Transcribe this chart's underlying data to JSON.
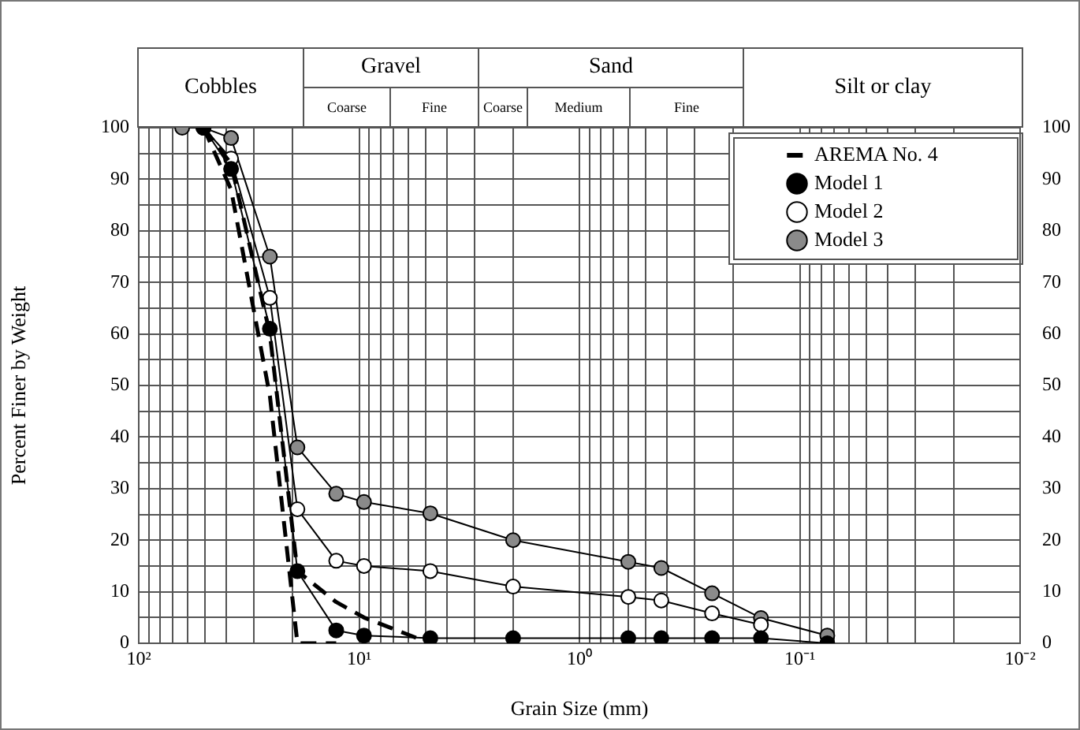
{
  "chart_data": {
    "type": "line",
    "xlabel": "Grain Size (mm)",
    "ylabel": "Percent Finer by Weight",
    "annotations": [
      "Cobbles",
      "Gravel",
      "Coarse",
      "Fine",
      "Sand",
      "Coarse",
      "Medium",
      "Fine",
      "Silt or clay"
    ],
    "log": "x",
    "xlim": [
      100,
      0.01
    ],
    "xticks": [
      {
        "value": 100,
        "label": "10²"
      },
      {
        "value": 90,
        "label": null
      },
      {
        "value": 80,
        "label": null
      },
      {
        "value": 70,
        "label": null
      },
      {
        "value": 60,
        "label": null
      },
      {
        "value": 50,
        "label": null
      },
      {
        "value": 40,
        "label": null
      },
      {
        "value": 30,
        "label": null
      },
      {
        "value": 20,
        "label": null
      },
      {
        "value": 10,
        "label": "10¹"
      },
      {
        "value": 9,
        "label": null
      },
      {
        "value": 8,
        "label": null
      },
      {
        "value": 7,
        "label": null
      },
      {
        "value": 6,
        "label": null
      },
      {
        "value": 5,
        "label": null
      },
      {
        "value": 4,
        "label": null
      },
      {
        "value": 3,
        "label": null
      },
      {
        "value": 2,
        "label": null
      },
      {
        "value": 1,
        "label": "10⁰"
      },
      {
        "value": 0.9,
        "label": null
      },
      {
        "value": 0.8,
        "label": null
      },
      {
        "value": 0.7,
        "label": null
      },
      {
        "value": 0.6,
        "label": null
      },
      {
        "value": 0.5,
        "label": null
      },
      {
        "value": 0.4,
        "label": null
      },
      {
        "value": 0.3,
        "label": null
      },
      {
        "value": 0.2,
        "label": null
      },
      {
        "value": 0.1,
        "label": "10⁻¹"
      },
      {
        "value": 0.09,
        "label": null
      },
      {
        "value": 0.08,
        "label": null
      },
      {
        "value": 0.07,
        "label": null
      },
      {
        "value": 0.06,
        "label": null
      },
      {
        "value": 0.05,
        "label": null
      },
      {
        "value": 0.04,
        "label": null
      },
      {
        "value": 0.03,
        "label": null
      },
      {
        "value": 0.02,
        "label": null
      },
      {
        "value": 0.01,
        "label": "10⁻²"
      }
    ],
    "ylim": [
      0,
      100
    ],
    "yticks": [
      0,
      {
        "value": 5,
        "label": null
      },
      10,
      {
        "value": 15,
        "label": null
      },
      20,
      {
        "value": 25,
        "label": null
      },
      30,
      {
        "value": 35,
        "label": null
      },
      40,
      {
        "value": 45,
        "label": null
      },
      50,
      {
        "value": 55,
        "label": null
      },
      60,
      {
        "value": 65,
        "label": null
      },
      70,
      {
        "value": 75,
        "label": null
      },
      80,
      {
        "value": 85,
        "label": null
      },
      90,
      {
        "value": 95,
        "label": null
      },
      100
    ],
    "y2lim": [
      0,
      100
    ],
    "y2ticks": [
      0,
      10,
      20,
      30,
      40,
      50,
      60,
      70,
      80,
      90,
      100
    ],
    "grid": true,
    "legend": "top right",
    "series": [
      {
        "name": "AREMA No. 4",
        "color": "#000000",
        "marker": "none",
        "line_style": "dashed",
        "x": [
          50.8,
          38.1,
          25.4,
          19.05,
          12.7
        ],
        "values": [
          100,
          88,
          48,
          0,
          0
        ]
      },
      {
        "color": "#000000",
        "marker": "none",
        "line_style": "dashed",
        "x": [
          50.8,
          38.1,
          25.4,
          19.05,
          12.7,
          9.5,
          4.75
        ],
        "values": [
          100,
          93,
          60,
          14,
          8,
          5,
          0
        ]
      },
      {
        "name": "Model 1",
        "color": "#000000",
        "marker": "circle",
        "line_style": "solid",
        "x": [
          50.8,
          38.1,
          25.4,
          19.05,
          12.7,
          9.5,
          4.75,
          2,
          0.6,
          0.425,
          0.25,
          0.15,
          0.075
        ],
        "values": [
          100,
          92,
          61,
          14,
          2.5,
          1.5,
          1,
          1,
          1,
          1,
          1,
          1,
          0
        ]
      },
      {
        "name": "Model 2",
        "color": "#000000",
        "marker": "circle",
        "line_style": "solid",
        "x": [
          50.8,
          38.1,
          25.4,
          19.05,
          12.7,
          9.5,
          4.75,
          2,
          0.6,
          0.425,
          0.25,
          0.15
        ],
        "values": [
          100,
          94,
          67,
          26,
          16,
          15,
          14,
          11,
          9,
          8.3,
          5.8,
          3.6
        ]
      },
      {
        "name": "Model 3",
        "color": "#000000",
        "marker": "circle",
        "line_style": "solid",
        "x": [
          63.5,
          50.8,
          38.1,
          25.4,
          19.05,
          12.7,
          9.5,
          4.75,
          2,
          0.6,
          0.425,
          0.25,
          0.15,
          0.075
        ],
        "values": [
          100,
          100,
          98,
          75,
          38,
          29,
          27.4,
          25.2,
          20,
          15.8,
          14.6,
          9.7,
          4.9,
          1.5
        ]
      }
    ]
  }
}
